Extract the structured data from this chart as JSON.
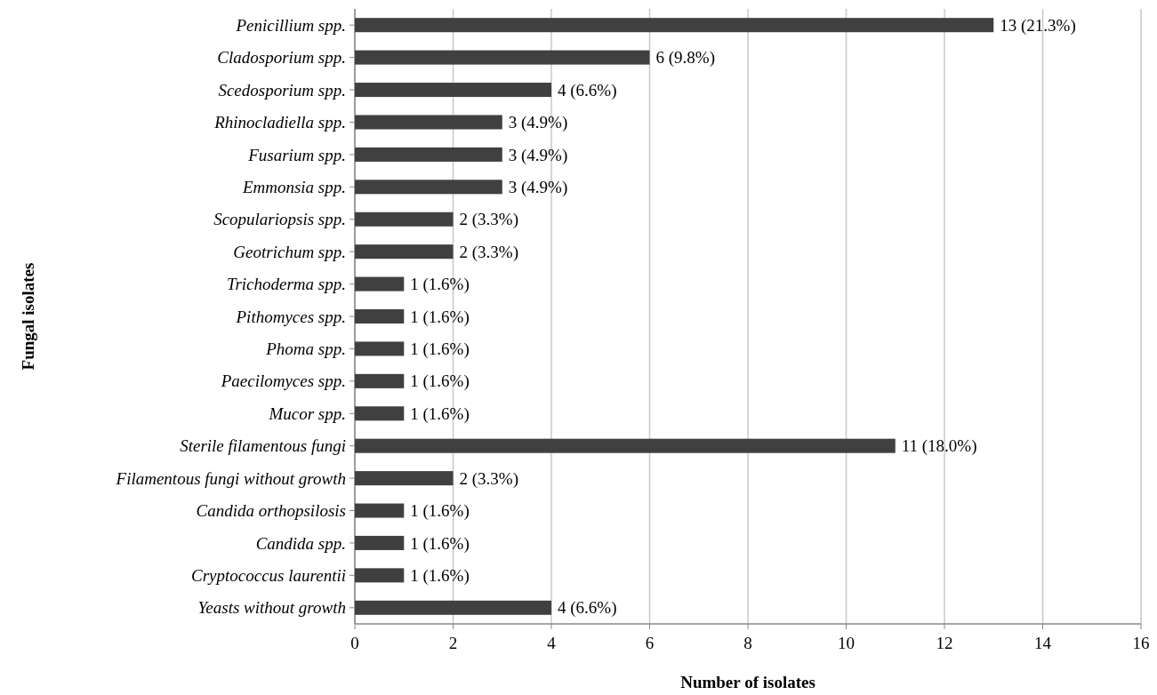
{
  "chart_data": {
    "type": "bar",
    "orientation": "horizontal",
    "xlabel": "Number of isolates",
    "ylabel": "Fungal isolates",
    "categories": [
      "Penicillium spp.",
      "Cladosporium spp.",
      "Scedosporium spp.",
      "Rhinocladiella spp.",
      "Fusarium spp.",
      "Emmonsia spp.",
      "Scopulariopsis spp.",
      "Geotrichum spp.",
      "Trichoderma spp.",
      "Pithomyces spp.",
      "Phoma spp.",
      "Paecilomyces spp.",
      "Mucor spp.",
      "Sterile filamentous fungi",
      "Filamentous fungi without growth",
      "Candida orthopsilosis",
      "Candida spp.",
      "Cryptococcus laurentii",
      "Yeasts without growth"
    ],
    "values": [
      13,
      6,
      4,
      3,
      3,
      3,
      2,
      2,
      1,
      1,
      1,
      1,
      1,
      11,
      2,
      1,
      1,
      1,
      4
    ],
    "value_labels": [
      "13 (21.3%)",
      "6 (9.8%)",
      "4 (6.6%)",
      "3 (4.9%)",
      "3 (4.9%)",
      "3 (4.9%)",
      "2 (3.3%)",
      "2 (3.3%)",
      "1 (1.6%)",
      "1 (1.6%)",
      "1 (1.6%)",
      "1 (1.6%)",
      "1 (1.6%)",
      "11 (18.0%)",
      "2 (3.3%)",
      "1 (1.6%)",
      "1 (1.6%)",
      "1 (1.6%)",
      "4 (6.6%)"
    ],
    "color": "#404040",
    "xlim": [
      0,
      16
    ],
    "xticks": [
      0,
      2,
      4,
      6,
      8,
      10,
      12,
      14,
      16
    ],
    "grid": "x"
  }
}
